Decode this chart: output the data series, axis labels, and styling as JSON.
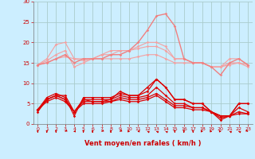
{
  "x": [
    0,
    1,
    2,
    3,
    4,
    5,
    6,
    7,
    8,
    9,
    10,
    11,
    12,
    13,
    14,
    15,
    16,
    17,
    18,
    19,
    20,
    21,
    22,
    23
  ],
  "lines": [
    {
      "y": [
        14.5,
        16,
        19.5,
        20,
        16,
        16,
        16,
        17,
        18,
        18,
        18,
        19,
        20,
        20,
        19,
        16,
        16,
        15,
        15,
        14,
        14,
        16,
        16,
        14.5
      ],
      "color": "#f4a0a0",
      "lw": 0.8,
      "marker": "D",
      "ms": 1.8
    },
    {
      "y": [
        14.5,
        15.5,
        17,
        18,
        14,
        15,
        16,
        17,
        17,
        18,
        18,
        18.5,
        19,
        19,
        18,
        16,
        16,
        15,
        15,
        14,
        14,
        15,
        15,
        14
      ],
      "color": "#f4a0a0",
      "lw": 0.8,
      "marker": "D",
      "ms": 1.8
    },
    {
      "y": [
        14.5,
        15,
        16,
        16.5,
        16,
        15.5,
        16,
        16,
        16,
        16,
        16,
        16.5,
        17,
        17,
        16,
        15,
        15,
        15,
        15,
        14,
        14,
        14.5,
        15,
        14.5
      ],
      "color": "#f4a0a0",
      "lw": 0.8,
      "marker": "D",
      "ms": 1.8
    },
    {
      "y": [
        14.5,
        15,
        16,
        17,
        15,
        16,
        16,
        16,
        17,
        17,
        18,
        20,
        23,
        26.5,
        27,
        24,
        16,
        15,
        15,
        14,
        12,
        15,
        16,
        14.5
      ],
      "color": "#f08080",
      "lw": 1.0,
      "marker": "D",
      "ms": 1.8
    },
    {
      "y": [
        3,
        6,
        7,
        7,
        3,
        6,
        6,
        6,
        6,
        8,
        7,
        7,
        9,
        11,
        9,
        6,
        6,
        5,
        5,
        3,
        1,
        2,
        5,
        5
      ],
      "color": "#dd0000",
      "lw": 0.9,
      "marker": "D",
      "ms": 1.8
    },
    {
      "y": [
        3.5,
        6.5,
        7.5,
        6.5,
        2,
        6.5,
        6.5,
        6.5,
        6.5,
        7.5,
        7,
        7,
        8,
        11,
        9,
        6,
        6,
        5,
        5,
        3,
        1.5,
        2,
        5,
        5
      ],
      "color": "#dd0000",
      "lw": 0.9,
      "marker": "D",
      "ms": 1.8
    },
    {
      "y": [
        3.5,
        6,
        7,
        6,
        3,
        6,
        5.5,
        5.5,
        6,
        7,
        6.5,
        6.5,
        7,
        9,
        7,
        5,
        5,
        4,
        4,
        3,
        2,
        2,
        4,
        3
      ],
      "color": "#dd0000",
      "lw": 0.9,
      "marker": "D",
      "ms": 1.8
    },
    {
      "y": [
        3.5,
        6,
        7,
        6,
        3,
        5.5,
        5.5,
        5.5,
        5.5,
        6.5,
        6,
        6,
        6.5,
        7.5,
        6,
        4.5,
        4.5,
        4,
        4,
        3,
        2,
        2,
        3,
        2.5
      ],
      "color": "#dd0000",
      "lw": 0.9,
      "marker": "D",
      "ms": 1.8
    },
    {
      "y": [
        3.5,
        5.5,
        6.5,
        5.5,
        3,
        5,
        5,
        5,
        5.5,
        6,
        5.5,
        5.5,
        6,
        7,
        5.5,
        4,
        4,
        3.5,
        3.5,
        3,
        2,
        2,
        2.5,
        2.5
      ],
      "color": "#dd0000",
      "lw": 0.9,
      "marker": "D",
      "ms": 1.8
    }
  ],
  "arrow_directions": [
    180,
    180,
    180,
    225,
    270,
    180,
    180,
    225,
    180,
    225,
    90,
    270,
    315,
    315,
    315,
    180,
    180,
    180,
    90,
    90,
    90,
    315,
    315,
    135
  ],
  "xlabel": "Vent moyen/en rafales ( km/h )",
  "xlim": [
    -0.5,
    23.5
  ],
  "ylim": [
    0,
    30
  ],
  "yticks": [
    0,
    5,
    10,
    15,
    20,
    25,
    30
  ],
  "xticks": [
    0,
    1,
    2,
    3,
    4,
    5,
    6,
    7,
    8,
    9,
    10,
    11,
    12,
    13,
    14,
    15,
    16,
    17,
    18,
    19,
    20,
    21,
    22,
    23
  ],
  "bg_color": "#cceeff",
  "grid_color": "#aacccc",
  "tick_color": "#cc0000",
  "label_color": "#cc0000",
  "arrow_color": "#cc0000"
}
